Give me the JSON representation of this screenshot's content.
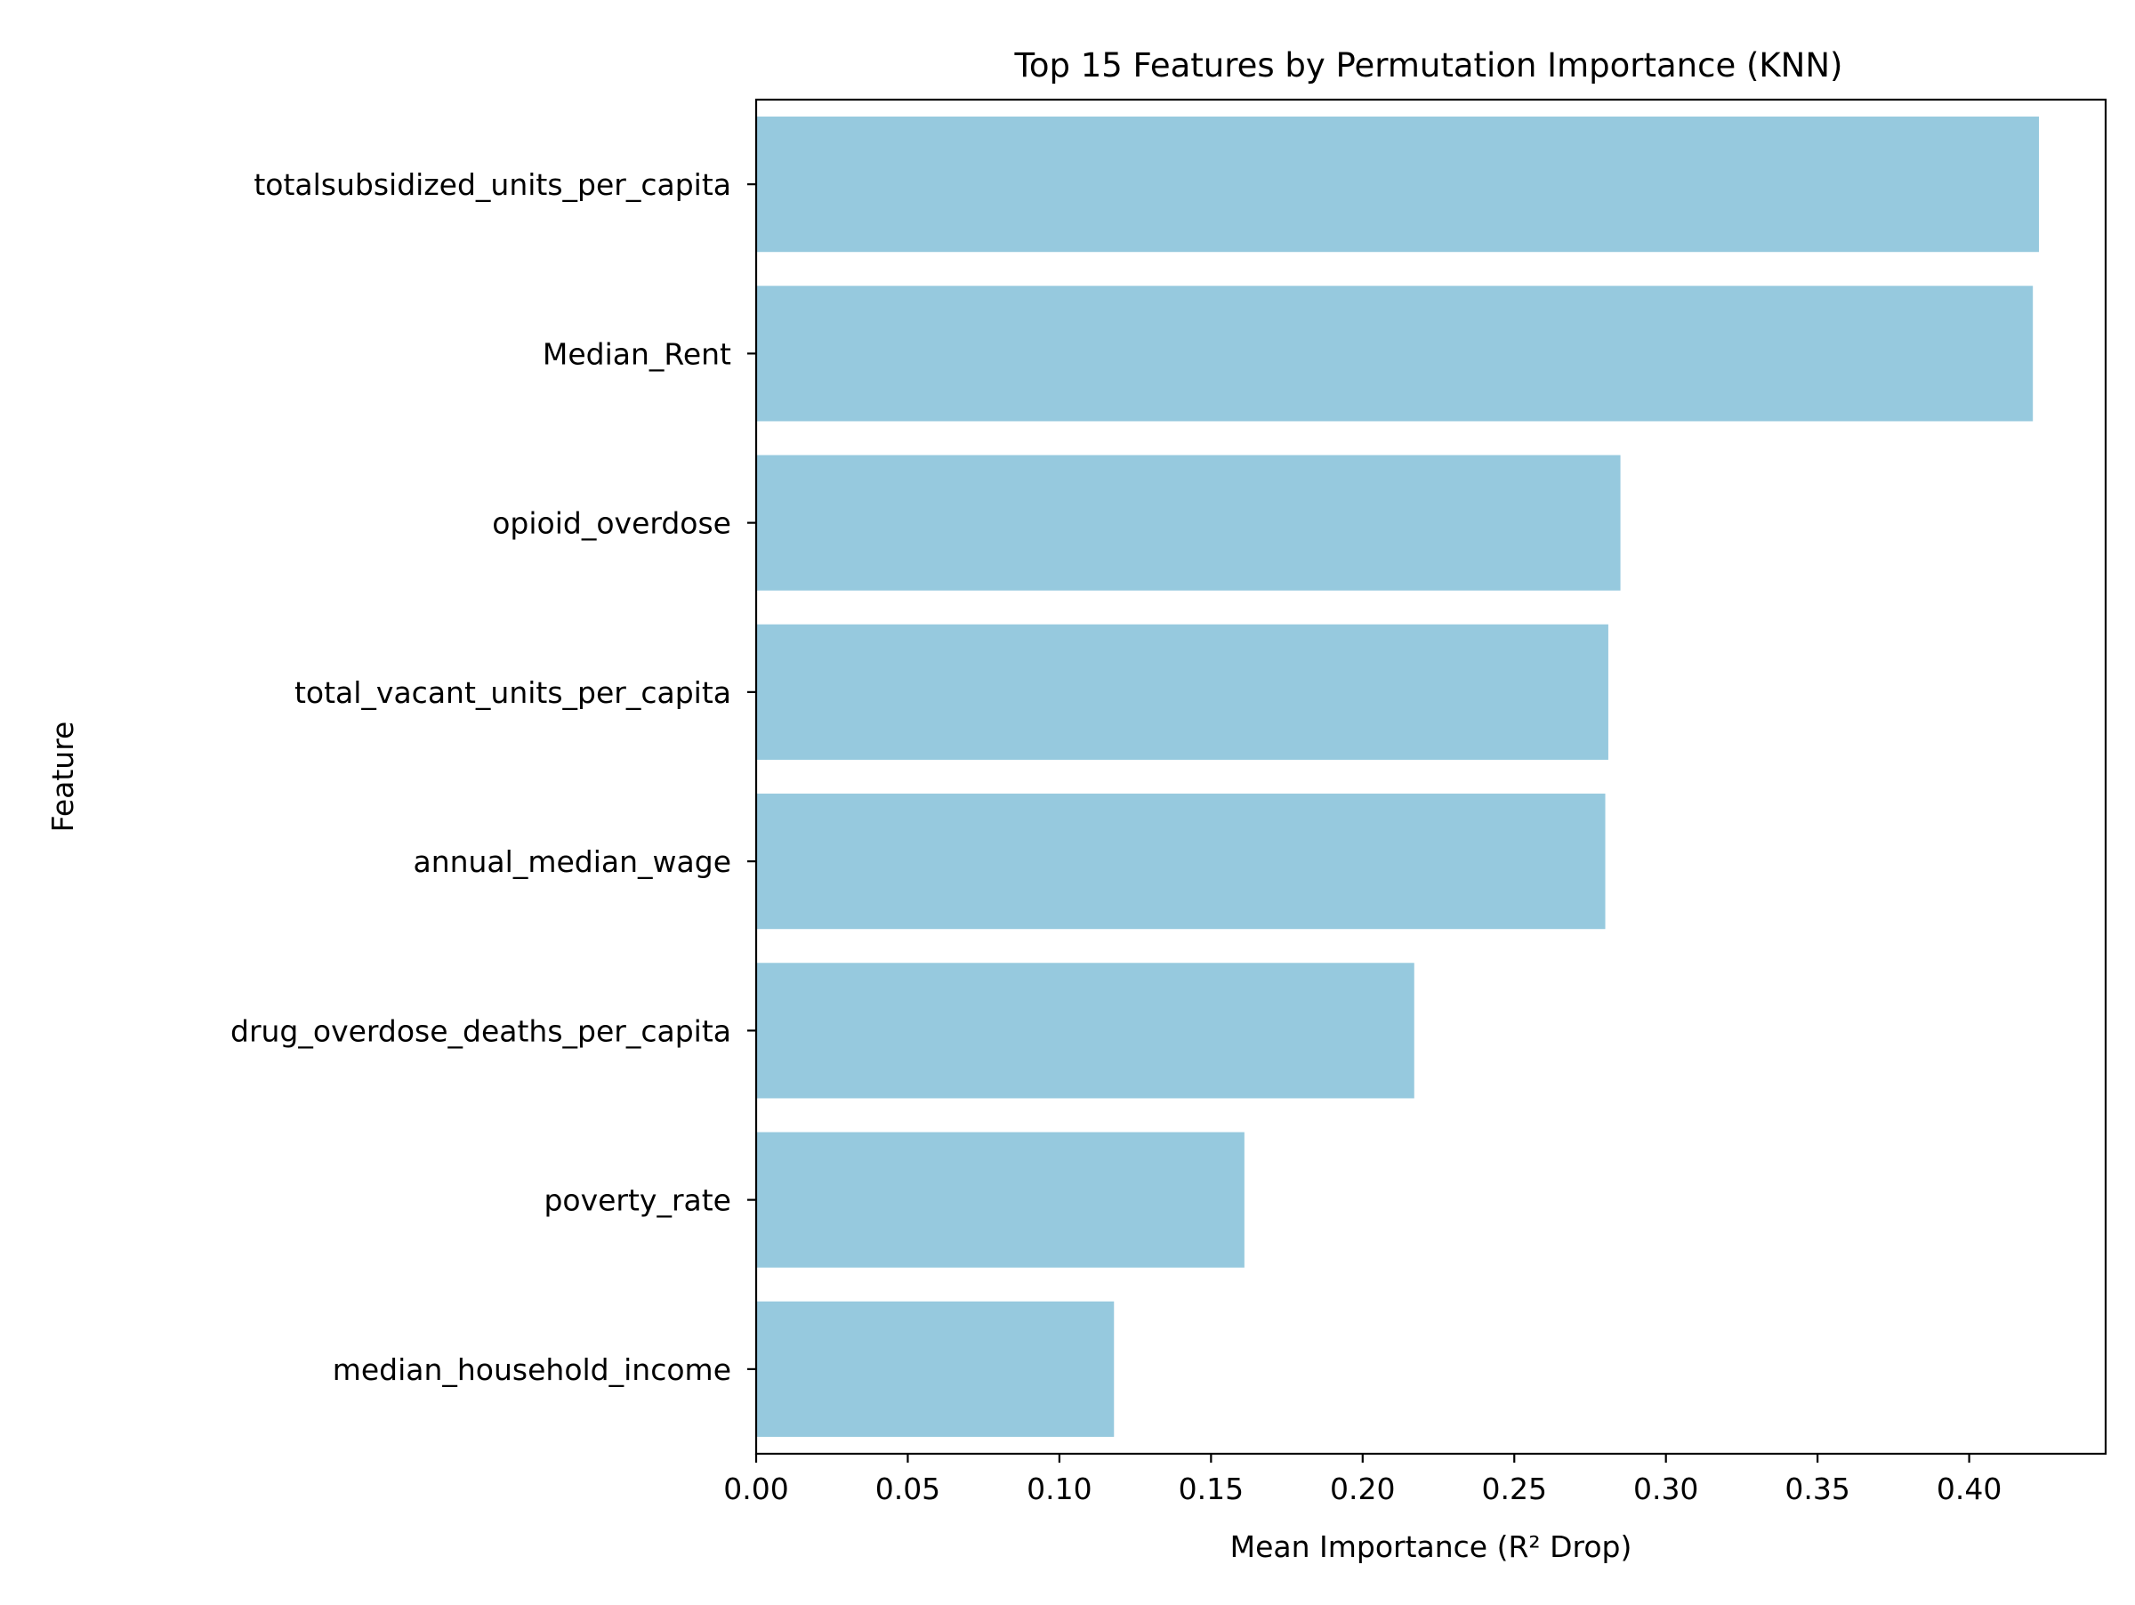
{
  "chart_data": {
    "type": "bar",
    "orientation": "horizontal",
    "title": "Top 15 Features by Permutation Importance (KNN)",
    "xlabel": "Mean Importance (R² Drop)",
    "ylabel": "Feature",
    "xlim": [
      0,
      0.445
    ],
    "xticks": [
      0.0,
      0.05,
      0.1,
      0.15,
      0.2,
      0.25,
      0.3,
      0.35,
      0.4
    ],
    "xtick_labels": [
      "0.00",
      "0.05",
      "0.10",
      "0.15",
      "0.20",
      "0.25",
      "0.30",
      "0.35",
      "0.40"
    ],
    "categories": [
      "totalsubsidized_units_per_capita",
      "Median_Rent",
      "opioid_overdose",
      "total_vacant_units_per_capita",
      "annual_median_wage",
      "drug_overdose_deaths_per_capita",
      "poverty_rate",
      "median_household_income"
    ],
    "values": [
      0.423,
      0.421,
      0.285,
      0.281,
      0.28,
      0.217,
      0.161,
      0.118
    ],
    "bar_color": "#96c9de",
    "grid": false,
    "legend": "none"
  }
}
